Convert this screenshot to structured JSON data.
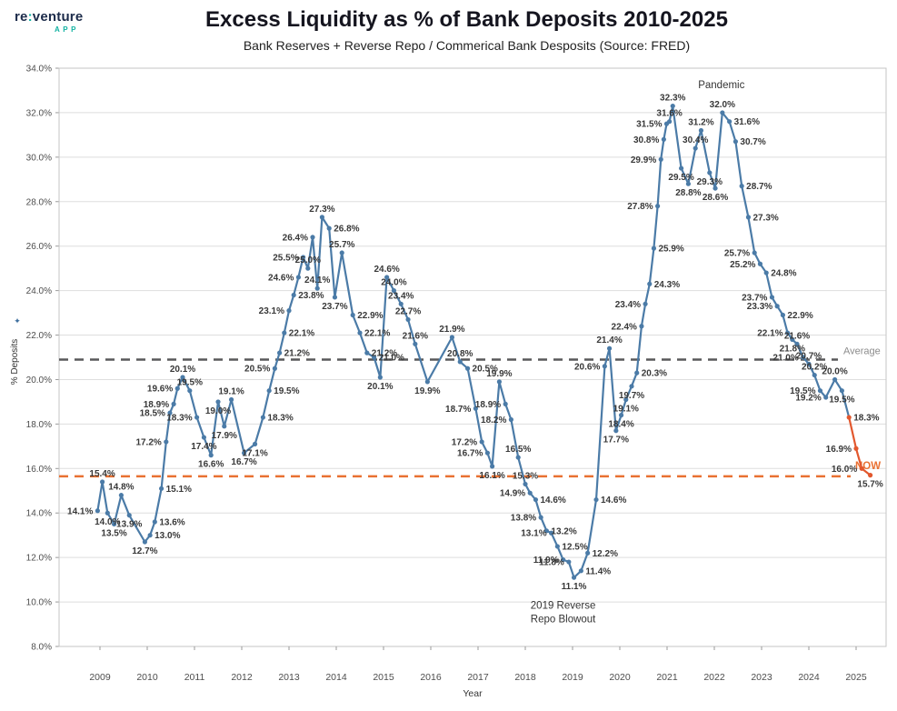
{
  "logo": {
    "prefix": "re",
    "colon": ":",
    "suffix": "venture",
    "app": "APP"
  },
  "header": {
    "title": "Excess Liquidity as % of Bank Deposits 2010-2025",
    "subtitle": "Bank Reserves + Reverse Repo / Commerical Bank Desposits (Source: FRED)"
  },
  "chart_data": {
    "type": "line",
    "title": "Excess Liquidity as % of Bank Deposits 2010-2025",
    "subtitle": "Bank Reserves + Reverse Repo / Commerical Bank Desposits (Source: FRED)",
    "xlabel": "Year",
    "ylabel": "% Deposits",
    "ylabel_icon": "✦",
    "ylim": [
      8,
      34
    ],
    "grid": "horizontal",
    "legend": "none",
    "line_color": "#4b7ba7",
    "recent_color": "#e2582e",
    "label_color": "#383838",
    "x_ticks": [
      "2009",
      "2010",
      "2011",
      "2012",
      "2013",
      "2014",
      "2015",
      "2016",
      "2017",
      "2018",
      "2019",
      "2020",
      "2021",
      "2022",
      "2023",
      "2024",
      "2025"
    ],
    "y_ticks": [
      "34.0%",
      "32.0%",
      "30.0%",
      "28.0%",
      "26.0%",
      "24.0%",
      "22.0%",
      "20.0%",
      "18.0%",
      "16.0%",
      "14.0%",
      "12.0%",
      "10.0%",
      "8.0%"
    ],
    "average_line": {
      "value": 20.9,
      "label": "Average",
      "color": "#58585a",
      "label_color": "#8c8c8c"
    },
    "now_line": {
      "value": 15.65,
      "label": "NOW",
      "color": "#E97132"
    },
    "annotations": [
      {
        "name": "pandemic",
        "lines": [
          "Pandemic"
        ],
        "x": 2022.15,
        "v": 33.1
      },
      {
        "name": "repo-blowout",
        "lines": [
          "2019 Reverse",
          "Repo Blowout"
        ],
        "x": 2018.8,
        "v": 9.7
      }
    ],
    "points": [
      {
        "x": 2008.95,
        "v": 14.1,
        "p": "l"
      },
      {
        "x": 2009.05,
        "v": 15.4,
        "p": "a"
      },
      {
        "x": 2009.16,
        "v": 14.0,
        "p": "b"
      },
      {
        "x": 2009.3,
        "v": 13.5,
        "p": "b"
      },
      {
        "x": 2009.45,
        "v": 14.8,
        "p": "a"
      },
      {
        "x": 2009.62,
        "v": 13.9,
        "p": "b"
      },
      {
        "x": 2009.95,
        "v": 12.7,
        "p": "b"
      },
      {
        "x": 2010.06,
        "v": 13.0,
        "p": "r"
      },
      {
        "x": 2010.16,
        "v": 13.6,
        "p": "r"
      },
      {
        "x": 2010.3,
        "v": 15.1,
        "p": "r"
      },
      {
        "x": 2010.4,
        "v": 17.2,
        "p": "l"
      },
      {
        "x": 2010.48,
        "v": 18.5,
        "p": "l"
      },
      {
        "x": 2010.56,
        "v": 18.9,
        "p": "l"
      },
      {
        "x": 2010.64,
        "v": 19.6,
        "p": "l"
      },
      {
        "x": 2010.75,
        "v": 20.1,
        "p": "a"
      },
      {
        "x": 2010.9,
        "v": 19.5,
        "p": "a"
      },
      {
        "x": 2011.05,
        "v": 18.3,
        "p": "l"
      },
      {
        "x": 2011.2,
        "v": 17.4,
        "p": "b"
      },
      {
        "x": 2011.35,
        "v": 16.6,
        "p": "b"
      },
      {
        "x": 2011.5,
        "v": 19.0,
        "p": "b"
      },
      {
        "x": 2011.63,
        "v": 17.9,
        "p": "b"
      },
      {
        "x": 2011.78,
        "v": 19.1,
        "p": "a"
      },
      {
        "x": 2012.05,
        "v": 16.7,
        "p": "b"
      },
      {
        "x": 2012.28,
        "v": 17.1,
        "p": "b"
      },
      {
        "x": 2012.45,
        "v": 18.3,
        "p": "r"
      },
      {
        "x": 2012.58,
        "v": 19.5,
        "p": "r"
      },
      {
        "x": 2012.7,
        "v": 20.5,
        "p": "l"
      },
      {
        "x": 2012.8,
        "v": 21.2,
        "p": "r"
      },
      {
        "x": 2012.9,
        "v": 22.1,
        "p": "r"
      },
      {
        "x": 2013.0,
        "v": 23.1,
        "p": "l"
      },
      {
        "x": 2013.1,
        "v": 23.8,
        "p": "r"
      },
      {
        "x": 2013.2,
        "v": 24.6,
        "p": "l"
      },
      {
        "x": 2013.3,
        "v": 25.5,
        "p": "l"
      },
      {
        "x": 2013.4,
        "v": 25.0,
        "p": "a"
      },
      {
        "x": 2013.5,
        "v": 26.4,
        "p": "l"
      },
      {
        "x": 2013.6,
        "v": 24.1,
        "p": "a"
      },
      {
        "x": 2013.7,
        "v": 27.3,
        "p": "a"
      },
      {
        "x": 2013.85,
        "v": 26.8,
        "p": "r"
      },
      {
        "x": 2013.97,
        "v": 23.7,
        "p": "b"
      },
      {
        "x": 2014.12,
        "v": 25.7,
        "p": "a"
      },
      {
        "x": 2014.35,
        "v": 22.9,
        "p": "r"
      },
      {
        "x": 2014.5,
        "v": 22.1,
        "p": "r"
      },
      {
        "x": 2014.65,
        "v": 21.2,
        "p": "r"
      },
      {
        "x": 2014.8,
        "v": 21.0,
        "p": "r"
      },
      {
        "x": 2014.93,
        "v": 20.1,
        "p": "b"
      },
      {
        "x": 2015.07,
        "v": 24.6,
        "p": "a"
      },
      {
        "x": 2015.22,
        "v": 24.0,
        "p": "a"
      },
      {
        "x": 2015.37,
        "v": 23.4,
        "p": "a"
      },
      {
        "x": 2015.52,
        "v": 22.7,
        "p": "a"
      },
      {
        "x": 2015.67,
        "v": 21.6,
        "p": "a"
      },
      {
        "x": 2015.93,
        "v": 19.9,
        "p": "b"
      },
      {
        "x": 2016.45,
        "v": 21.9,
        "p": "a"
      },
      {
        "x": 2016.62,
        "v": 20.8,
        "p": "a"
      },
      {
        "x": 2016.78,
        "v": 20.5,
        "p": "r"
      },
      {
        "x": 2016.95,
        "v": 18.7,
        "p": "l"
      },
      {
        "x": 2017.08,
        "v": 17.2,
        "p": "l"
      },
      {
        "x": 2017.2,
        "v": 16.7,
        "p": "l"
      },
      {
        "x": 2017.3,
        "v": 16.1,
        "p": "b"
      },
      {
        "x": 2017.45,
        "v": 19.9,
        "p": "a"
      },
      {
        "x": 2017.58,
        "v": 18.9,
        "p": "l"
      },
      {
        "x": 2017.7,
        "v": 18.2,
        "p": "l"
      },
      {
        "x": 2017.85,
        "v": 16.5,
        "p": "a"
      },
      {
        "x": 2018.0,
        "v": 15.3,
        "p": "a"
      },
      {
        "x": 2018.1,
        "v": 14.9,
        "p": "l"
      },
      {
        "x": 2018.22,
        "v": 14.6,
        "p": "r"
      },
      {
        "x": 2018.33,
        "v": 13.8,
        "p": "l"
      },
      {
        "x": 2018.45,
        "v": 13.2,
        "p": "r"
      },
      {
        "x": 2018.55,
        "v": 13.1,
        "p": "l"
      },
      {
        "x": 2018.68,
        "v": 12.5,
        "p": "r"
      },
      {
        "x": 2018.8,
        "v": 11.9,
        "p": "l"
      },
      {
        "x": 2018.92,
        "v": 11.8,
        "p": "l"
      },
      {
        "x": 2019.03,
        "v": 11.1,
        "p": "b"
      },
      {
        "x": 2019.18,
        "v": 11.4,
        "p": "r"
      },
      {
        "x": 2019.32,
        "v": 12.2,
        "p": "r"
      },
      {
        "x": 2019.5,
        "v": 14.6,
        "p": "r"
      },
      {
        "x": 2019.68,
        "v": 20.6,
        "p": "l"
      },
      {
        "x": 2019.78,
        "v": 21.4,
        "p": "a"
      },
      {
        "x": 2019.92,
        "v": 17.7,
        "p": "b"
      },
      {
        "x": 2020.03,
        "v": 18.4,
        "p": "b"
      },
      {
        "x": 2020.13,
        "v": 19.1,
        "p": "b"
      },
      {
        "x": 2020.25,
        "v": 19.7,
        "p": "b"
      },
      {
        "x": 2020.36,
        "v": 20.3,
        "p": "r"
      },
      {
        "x": 2020.46,
        "v": 22.4,
        "p": "l"
      },
      {
        "x": 2020.54,
        "v": 23.4,
        "p": "l"
      },
      {
        "x": 2020.63,
        "v": 24.3,
        "p": "r"
      },
      {
        "x": 2020.72,
        "v": 25.9,
        "p": "r"
      },
      {
        "x": 2020.8,
        "v": 27.8,
        "p": "l"
      },
      {
        "x": 2020.87,
        "v": 29.9,
        "p": "l"
      },
      {
        "x": 2020.93,
        "v": 30.8,
        "p": "l"
      },
      {
        "x": 2020.99,
        "v": 31.5,
        "p": "l"
      },
      {
        "x": 2021.05,
        "v": 31.6,
        "p": "a"
      },
      {
        "x": 2021.12,
        "v": 32.3,
        "p": "a"
      },
      {
        "x": 2021.3,
        "v": 29.5,
        "p": "b"
      },
      {
        "x": 2021.45,
        "v": 28.8,
        "p": "b"
      },
      {
        "x": 2021.6,
        "v": 30.4,
        "p": "a"
      },
      {
        "x": 2021.72,
        "v": 31.2,
        "p": "a"
      },
      {
        "x": 2021.9,
        "v": 29.3,
        "p": "b"
      },
      {
        "x": 2022.02,
        "v": 28.6,
        "p": "b"
      },
      {
        "x": 2022.17,
        "v": 32.0,
        "p": "a"
      },
      {
        "x": 2022.32,
        "v": 31.6,
        "p": "r"
      },
      {
        "x": 2022.45,
        "v": 30.7,
        "p": "r"
      },
      {
        "x": 2022.58,
        "v": 28.7,
        "p": "r"
      },
      {
        "x": 2022.72,
        "v": 27.3,
        "p": "r"
      },
      {
        "x": 2022.85,
        "v": 25.7,
        "p": "l"
      },
      {
        "x": 2022.97,
        "v": 25.2,
        "p": "l"
      },
      {
        "x": 2023.1,
        "v": 24.8,
        "p": "r"
      },
      {
        "x": 2023.22,
        "v": 23.7,
        "p": "l"
      },
      {
        "x": 2023.33,
        "v": 23.3,
        "p": "l"
      },
      {
        "x": 2023.45,
        "v": 22.9,
        "p": "r"
      },
      {
        "x": 2023.55,
        "v": 22.1,
        "p": "l"
      },
      {
        "x": 2023.65,
        "v": 21.8,
        "p": "b"
      },
      {
        "x": 2023.75,
        "v": 21.6,
        "p": "a"
      },
      {
        "x": 2023.88,
        "v": 21.0,
        "p": "l"
      },
      {
        "x": 2024.0,
        "v": 20.7,
        "p": "a"
      },
      {
        "x": 2024.12,
        "v": 20.2,
        "p": "a"
      },
      {
        "x": 2024.24,
        "v": 19.5,
        "p": "l"
      },
      {
        "x": 2024.36,
        "v": 19.2,
        "p": "l"
      },
      {
        "x": 2024.55,
        "v": 20.0,
        "p": "a"
      },
      {
        "x": 2024.7,
        "v": 19.5,
        "p": "b"
      },
      {
        "x": 2024.85,
        "v": 18.3,
        "p": "r",
        "hot": true
      },
      {
        "x": 2025.0,
        "v": 16.9,
        "p": "l",
        "hot": true
      },
      {
        "x": 2025.12,
        "v": 16.0,
        "p": "l",
        "hot": true
      },
      {
        "x": 2025.3,
        "v": 15.7,
        "p": "b",
        "hot": true
      }
    ]
  }
}
